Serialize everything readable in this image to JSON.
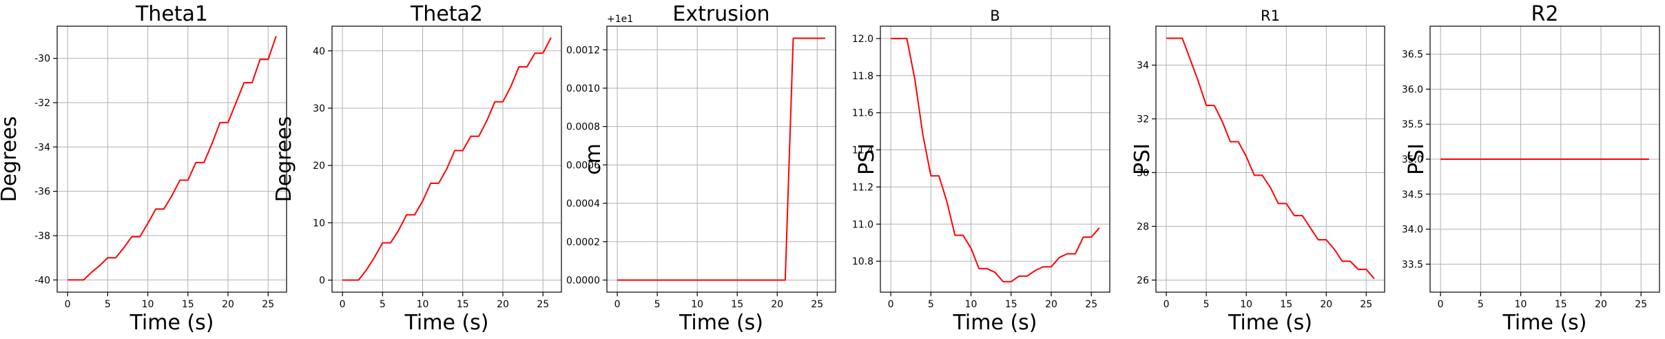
{
  "chart_data": [
    {
      "type": "line",
      "title": "Theta1",
      "xlabel": "Time (s)",
      "ylabel": "Degrees",
      "xlim": [
        -1.3,
        27.3
      ],
      "ylim": [
        -40.55,
        -28.55
      ],
      "xticks": [
        0,
        5,
        10,
        15,
        20,
        25
      ],
      "yticks": [
        -40,
        -38,
        -36,
        -34,
        -32,
        -30
      ],
      "offset_label": "",
      "color": "#ff0000",
      "grid": true,
      "x": [
        0,
        1,
        2,
        3,
        4,
        5,
        6,
        7,
        8,
        9,
        10,
        11,
        12,
        13,
        14,
        15,
        16,
        17,
        18,
        19,
        20,
        21,
        22,
        23,
        24,
        25,
        26
      ],
      "y": [
        -40.0,
        -40.0,
        -40.0,
        -39.65,
        -39.35,
        -39.0,
        -39.0,
        -38.55,
        -38.05,
        -38.05,
        -37.45,
        -36.8,
        -36.8,
        -36.2,
        -35.5,
        -35.5,
        -34.7,
        -34.7,
        -33.85,
        -32.9,
        -32.9,
        -32.0,
        -31.1,
        -31.1,
        -30.05,
        -30.05,
        -29.0
      ],
      "title_size": 30
    },
    {
      "type": "line",
      "title": "Theta2",
      "xlabel": "Time (s)",
      "ylabel": "Degrees",
      "xlim": [
        -1.3,
        27.3
      ],
      "ylim": [
        -2.1,
        44.3
      ],
      "xticks": [
        0,
        5,
        10,
        15,
        20,
        25
      ],
      "yticks": [
        0,
        10,
        20,
        30,
        40
      ],
      "offset_label": "",
      "color": "#ff0000",
      "grid": true,
      "x": [
        0,
        1,
        2,
        3,
        4,
        5,
        6,
        7,
        8,
        9,
        10,
        11,
        12,
        13,
        14,
        15,
        16,
        17,
        18,
        19,
        20,
        21,
        22,
        23,
        24,
        25,
        26
      ],
      "y": [
        0.0,
        0.0,
        0.0,
        1.8,
        4.0,
        6.5,
        6.5,
        8.7,
        11.4,
        11.4,
        13.8,
        16.9,
        16.9,
        19.4,
        22.6,
        22.6,
        25.1,
        25.1,
        27.8,
        31.1,
        31.1,
        33.8,
        37.2,
        37.2,
        39.6,
        39.6,
        42.3
      ],
      "title_size": 30
    },
    {
      "type": "line",
      "title": "Extrusion",
      "xlabel": "Time (s)",
      "ylabel": "cm",
      "xlim": [
        -1.3,
        27.3
      ],
      "ylim": [
        -6.3e-05,
        0.001323
      ],
      "xticks": [
        0,
        5,
        10,
        15,
        20,
        25
      ],
      "yticks": [
        0.0,
        0.0002,
        0.0004,
        0.0006,
        0.0008,
        0.001,
        0.0012
      ],
      "ytick_labels": [
        "0.0000",
        "0.0002",
        "0.0004",
        "0.0006",
        "0.0008",
        "0.0010",
        "0.0012"
      ],
      "offset_label": "+1e1",
      "color": "#ff0000",
      "grid": true,
      "x": [
        0,
        21,
        22,
        23,
        24,
        25,
        26
      ],
      "y": [
        0.0,
        0.0,
        0.00126,
        0.00126,
        0.00126,
        0.00126,
        0.00126
      ],
      "title_size": 30
    },
    {
      "type": "line",
      "title": "B",
      "xlabel": "Time (s)",
      "ylabel": "PSI",
      "xlim": [
        -1.3,
        27.3
      ],
      "ylim": [
        10.6335,
        12.0665
      ],
      "xticks": [
        0,
        5,
        10,
        15,
        20,
        25
      ],
      "yticks": [
        10.8,
        11.0,
        11.2,
        11.4,
        11.6,
        11.8,
        12.0
      ],
      "ytick_labels": [
        "10.8",
        "11.0",
        "11.2",
        "11.4",
        "11.6",
        "11.8",
        "12.0"
      ],
      "offset_label": "",
      "color": "#ff0000",
      "grid": true,
      "x": [
        0,
        1,
        2,
        3,
        4,
        5,
        6,
        7,
        8,
        9,
        10,
        11,
        12,
        13,
        14,
        15,
        16,
        17,
        18,
        19,
        20,
        21,
        22,
        23,
        24,
        25,
        26
      ],
      "y": [
        12.0,
        12.0,
        12.0,
        11.78,
        11.48,
        11.26,
        11.26,
        11.12,
        10.94,
        10.94,
        10.87,
        10.76,
        10.76,
        10.74,
        10.69,
        10.69,
        10.72,
        10.72,
        10.75,
        10.77,
        10.77,
        10.82,
        10.84,
        10.84,
        10.93,
        10.93,
        10.98
      ],
      "title_size": 21
    },
    {
      "type": "line",
      "title": "R1",
      "xlabel": "Time (s)",
      "ylabel": "PSI",
      "xlim": [
        -1.3,
        27.3
      ],
      "ylim": [
        25.55,
        35.45
      ],
      "xticks": [
        0,
        5,
        10,
        15,
        20,
        25
      ],
      "yticks": [
        26,
        28,
        30,
        32,
        34
      ],
      "offset_label": "",
      "color": "#ff0000",
      "grid": true,
      "x": [
        0,
        1,
        2,
        3,
        4,
        5,
        6,
        7,
        8,
        9,
        10,
        11,
        12,
        13,
        14,
        15,
        16,
        17,
        18,
        19,
        20,
        21,
        22,
        23,
        24,
        25,
        26
      ],
      "y": [
        35.0,
        35.0,
        35.0,
        34.2,
        33.4,
        32.5,
        32.5,
        31.9,
        31.15,
        31.15,
        30.6,
        29.9,
        29.9,
        29.45,
        28.85,
        28.85,
        28.4,
        28.4,
        27.95,
        27.5,
        27.5,
        27.15,
        26.7,
        26.7,
        26.4,
        26.4,
        26.05
      ],
      "title_size": 21
    },
    {
      "type": "line",
      "title": "R2",
      "xlabel": "Time (s)",
      "ylabel": "PSI",
      "xlim": [
        -1.3,
        27.3
      ],
      "ylim": [
        33.1,
        36.9
      ],
      "xticks": [
        0,
        5,
        10,
        15,
        20,
        25
      ],
      "yticks": [
        33.5,
        34.0,
        34.5,
        35.0,
        35.5,
        36.0,
        36.5
      ],
      "ytick_labels": [
        "33.5",
        "34.0",
        "34.5",
        "35.0",
        "35.5",
        "36.0",
        "36.5"
      ],
      "offset_label": "",
      "color": "#ff0000",
      "grid": true,
      "x": [
        0,
        26
      ],
      "y": [
        35.0,
        35.0
      ],
      "title_size": 30
    }
  ]
}
